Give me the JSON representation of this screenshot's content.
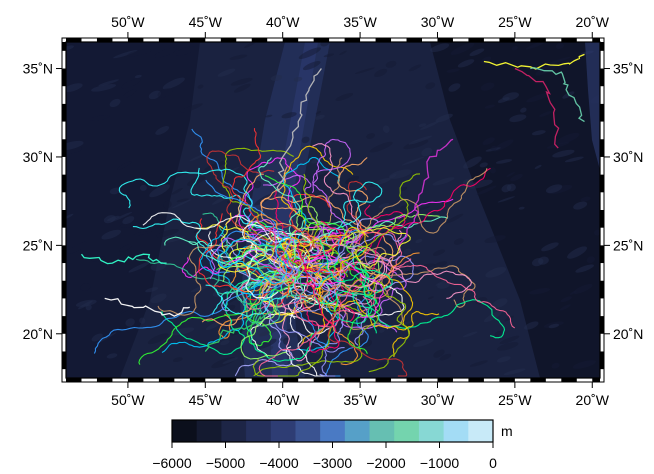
{
  "map": {
    "lon_range": [
      -54,
      -19.5
    ],
    "lat_range": [
      17.5,
      36.5
    ],
    "x_ticks": [
      {
        "lon": -50,
        "label": "50˚W"
      },
      {
        "lon": -45,
        "label": "45˚W"
      },
      {
        "lon": -40,
        "label": "40˚W"
      },
      {
        "lon": -35,
        "label": "35˚W"
      },
      {
        "lon": -30,
        "label": "30˚W"
      },
      {
        "lon": -25,
        "label": "25˚W"
      },
      {
        "lon": -20,
        "label": "20˚W"
      }
    ],
    "y_ticks": [
      {
        "lat": 35,
        "label": "35˚N"
      },
      {
        "lat": 30,
        "label": "30˚N"
      },
      {
        "lat": 25,
        "label": "25˚N"
      },
      {
        "lat": 20,
        "label": "20˚N"
      }
    ],
    "ocean_color": "#1a2240"
  },
  "colorbar": {
    "unit": "m",
    "ticks": [
      "−6000",
      "−5000",
      "−4000",
      "−3000",
      "−2000",
      "−1000",
      "0"
    ],
    "colors": [
      "#0b0f1c",
      "#141a30",
      "#1d2546",
      "#25305c",
      "#2e3d74",
      "#3a5391",
      "#4a7ac4",
      "#56a0c8",
      "#66bfb2",
      "#74d4ae",
      "#87d8d4",
      "#a3dcf5",
      "#c8eaf8"
    ]
  },
  "tracks": {
    "colors": [
      "#ff3333",
      "#33ff33",
      "#3399ff",
      "#ffff33",
      "#ff33ff",
      "#33ffff",
      "#ff9933",
      "#ffffff",
      "#cc66ff",
      "#ff6699",
      "#99ff66",
      "#66ffcc",
      "#ffcc00",
      "#ff0066",
      "#00ccff",
      "#99cc00",
      "#cc9966",
      "#9999ff",
      "#ff99cc",
      "#00ff99",
      "#cc3333",
      "#33cc99",
      "#ffaa66",
      "#aaaaff"
    ]
  }
}
